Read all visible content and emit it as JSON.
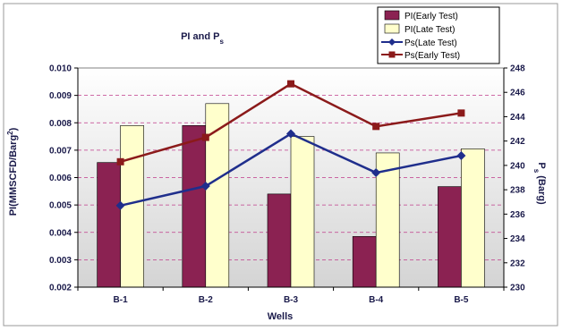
{
  "chart_data": {
    "type": "bar",
    "title": "PI and P",
    "title_subscript": "s",
    "xlabel": "Wells",
    "ylabel_left": "PI(MMSCFD/Barg",
    "ylabel_left_superscript": "2",
    "ylabel_left_end": ")",
    "ylabel_right_main": "P",
    "ylabel_right_subscript": "s",
    "ylabel_right_unit": "(Barg)",
    "categories": [
      "B-1",
      "B-2",
      "B-3",
      "B-4",
      "B-5"
    ],
    "y_left": {
      "min": 0.002,
      "max": 0.01,
      "step": 0.001,
      "ticks": [
        "0.002",
        "0.003",
        "0.004",
        "0.005",
        "0.006",
        "0.007",
        "0.008",
        "0.009",
        "0.010"
      ]
    },
    "y_right": {
      "min": 230,
      "max": 248,
      "step": 2,
      "ticks": [
        "230",
        "232",
        "234",
        "236",
        "238",
        "240",
        "242",
        "244",
        "246",
        "248"
      ]
    },
    "grid": true,
    "legend_position": "top-right",
    "series": [
      {
        "name": "PI(Early Test)",
        "type": "bar",
        "axis": "left",
        "color": "#8B2252",
        "values": [
          0.00655,
          0.0079,
          0.0054,
          0.00385,
          0.00567
        ]
      },
      {
        "name": "PI(Late Test)",
        "type": "bar",
        "axis": "left",
        "color": "#FFFFCC",
        "values": [
          0.0079,
          0.0087,
          0.0075,
          0.0069,
          0.00705
        ]
      },
      {
        "name": "Ps(Late Test)",
        "type": "line",
        "axis": "right",
        "color": "#1F2E8C",
        "marker": "diamond",
        "values": [
          236.7,
          238.3,
          242.6,
          239.4,
          240.8
        ]
      },
      {
        "name": "Ps(Early Test)",
        "type": "line",
        "axis": "right",
        "color": "#8B1A1A",
        "marker": "square",
        "values": [
          240.3,
          242.3,
          246.7,
          243.2,
          244.3
        ]
      }
    ]
  }
}
